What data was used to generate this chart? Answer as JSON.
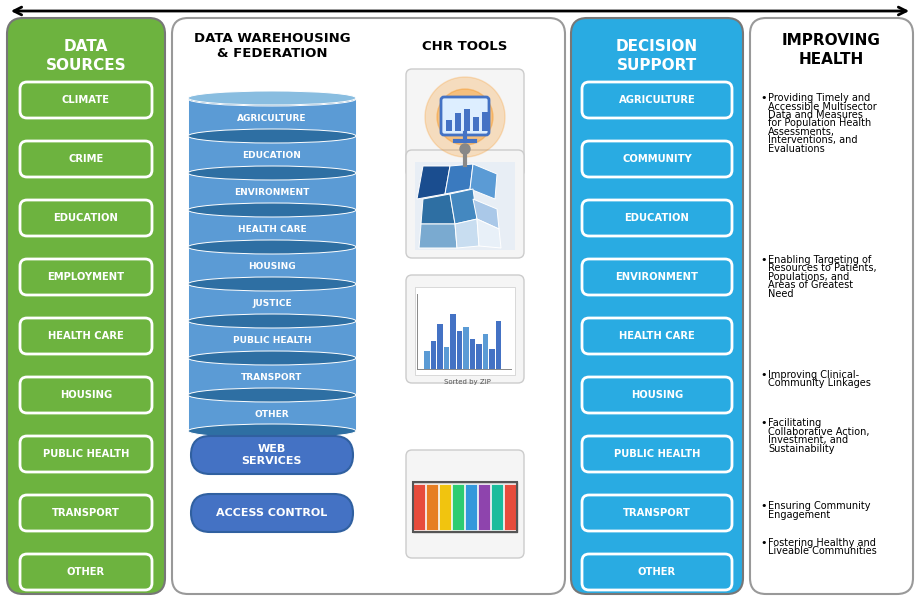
{
  "panel1_title": "DATA\nSOURCES",
  "panel1_bg": "#6db33f",
  "panel1_border": "#888888",
  "panel1_text_color": "#ffffff",
  "panel1_items": [
    "CLIMATE",
    "CRIME",
    "EDUCATION",
    "EMPLOYMENT",
    "HEALTH CARE",
    "HOUSING",
    "PUBLIC HEALTH",
    "TRANSPORT",
    "OTHER"
  ],
  "panel2_title1": "DATA WAREHOUSING\n& FEDERATION",
  "panel2_title2": "CHR TOOLS",
  "panel2_db_color": "#5b9bd5",
  "panel2_db_dark": "#2e6fa3",
  "panel2_db_top": "#89bde0",
  "panel2_db_items": [
    "AGRICULTURE",
    "EDUCATION",
    "ENVIRONMENT",
    "HEALTH CARE",
    "HOUSING",
    "JUSTICE",
    "PUBLIC HEALTH",
    "TRANSPORT",
    "OTHER"
  ],
  "panel2_service_color": "#4472c4",
  "panel2_service_items": [
    "WEB\nSERVICES",
    "ACCESS CONTROL"
  ],
  "panel3_title": "DECISION\nSUPPORT",
  "panel3_bg": "#29abe2",
  "panel3_items": [
    "AGRICULTURE",
    "COMMUNITY",
    "EDUCATION",
    "ENVIRONMENT",
    "HEALTH CARE",
    "HOUSING",
    "PUBLIC HEALTH",
    "TRANSPORT",
    "OTHER"
  ],
  "panel4_title": "IMPROVING\nHEALTH",
  "panel4_bullets": [
    "Providing Timely and\nAccessible Multisector\nData and Measures\nfor Population Health\nAssessments,\nInterventions, and\nEvaluations",
    "Enabling Targeting of\nResources to Patients,\nPopulations, and\nAreas of Greatest\nNeed",
    "Improving Clinical-\nCommunity Linkages",
    "Facilitating\nCollaborative Action,\nInvestment, and\nSustainability",
    "Ensuring Community\nEngagement",
    "Fostering Healthy and\nLiveable Communities"
  ],
  "item_fontsize": 7.2,
  "title_fontsize": 10.5,
  "bullet_fontsize": 7.0
}
